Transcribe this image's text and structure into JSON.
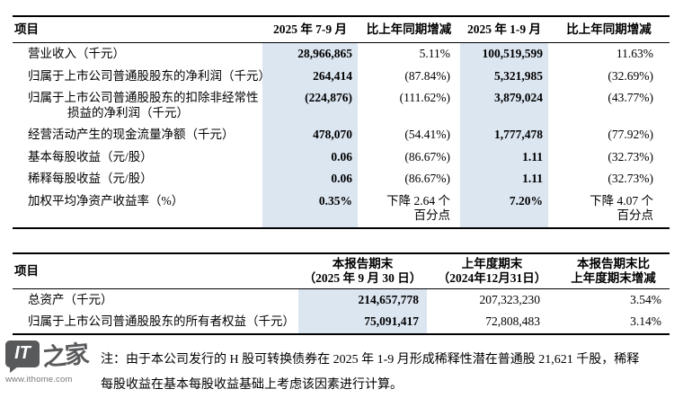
{
  "colors": {
    "highlight": "#dce6f1",
    "border": "#000000",
    "text": "#000000",
    "logo_gray": "#58595b",
    "logo_url_gray": "#77787b"
  },
  "table1": {
    "headers": [
      "项目",
      "2025 年 7-9 月",
      "比上年同期增减",
      "2025 年 1-9 月",
      "比上年同期增减"
    ],
    "rows": [
      {
        "label": [
          "营业收入（千元）"
        ],
        "values": [
          "28,966,865",
          "5.11%",
          "100,519,599",
          "11.63%"
        ]
      },
      {
        "label": [
          "归属于上市公司普通股股东的净利润（千元）"
        ],
        "values": [
          "264,414",
          "(87.84%)",
          "5,321,985",
          "(32.69%)"
        ]
      },
      {
        "label": [
          "归属于上市公司普通股股东的扣除非经常性",
          "损益的净利润（千元）"
        ],
        "values": [
          "(224,876)",
          "(111.62%)",
          "3,879,024",
          "(43.77%)"
        ]
      },
      {
        "label": [
          "经营活动产生的现金流量净额（千元）"
        ],
        "values": [
          "478,070",
          "(54.41%)",
          "1,777,478",
          "(77.92%)"
        ]
      },
      {
        "label": [
          "基本每股收益（元/股）"
        ],
        "values": [
          "0.06",
          "(86.67%)",
          "1.11",
          "(32.73%)"
        ]
      },
      {
        "label": [
          "稀释每股收益（元/股）"
        ],
        "values": [
          "0.06",
          "(86.67%)",
          "1.11",
          "(32.73%)"
        ]
      },
      {
        "label": [
          "加权平均净资产收益率（%）"
        ],
        "values": [
          "0.35%",
          "下降 2.64 个\n百分点",
          "7.20%",
          "下降 4.07 个\n百分点"
        ]
      }
    ]
  },
  "table2": {
    "headers": [
      "项目",
      "本报告期末\n（2025 年 9 月 30 日）",
      "上年度期末\n（2024年12月31日）",
      "本报告期末比\n上年度期末增减"
    ],
    "rows": [
      {
        "label": [
          "总资产（千元）"
        ],
        "values": [
          "214,657,778",
          "207,323,230",
          "3.54%"
        ]
      },
      {
        "label": [
          "归属于上市公司普通股股东的所有者权益（千元）"
        ],
        "values": [
          "75,091,417",
          "72,808,483",
          "3.14%"
        ]
      }
    ]
  },
  "footnote": {
    "line1": "注：由于本公司发行的 H 股可转换债券在 2025 年 1-9 月形成稀释性潜在普通股 21,621 千股，稀释",
    "line2": "每股收益在基本每股收益基础上考虑该因素进行计算。"
  },
  "logo": {
    "it": "IT",
    "zhijia": "之家",
    "url": "www.ithome.com"
  }
}
